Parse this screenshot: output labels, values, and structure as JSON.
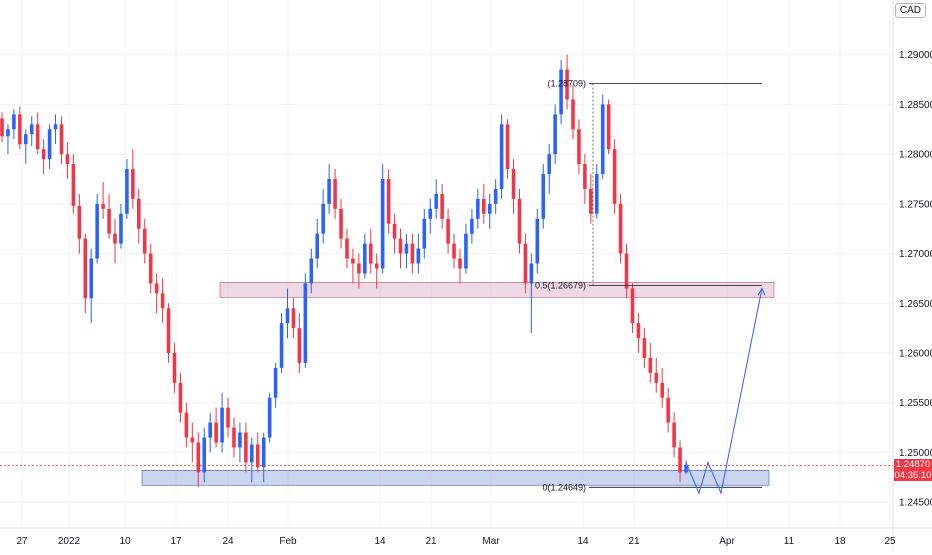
{
  "currency": "CAD",
  "colors": {
    "up": "#2962ff",
    "down": "#f23645",
    "supply_zone": "rgba(214,168,196,0.45)",
    "demand_zone": "rgba(160,178,226,0.55)",
    "forecast": "#2962ff",
    "grid": "#f0f3fa"
  },
  "price_tag": {
    "price": "1.24870",
    "countdown": "04:35:10"
  },
  "fib_levels": [
    {
      "label": "(1.28709)",
      "price": 1.28709
    },
    {
      "label": "0.5(1.26679)",
      "price": 1.26679
    },
    {
      "label": "0(1.24649)",
      "price": 1.24649
    }
  ],
  "zones": [
    {
      "name": "supply",
      "top": 1.2671,
      "bottom": 1.2656
    },
    {
      "name": "demand",
      "top": 1.2482,
      "bottom": 1.2467
    }
  ],
  "chart_data": {
    "type": "candlestick",
    "title": "",
    "y_axis": {
      "ticks": [
        "1.29000",
        "1.28500",
        "1.28000",
        "1.27500",
        "1.27000",
        "1.26500",
        "1.26000",
        "1.25500",
        "1.25000",
        "1.24500"
      ],
      "ylim": [
        1.2424,
        1.2955
      ]
    },
    "x_axis": {
      "ticks": [
        "27",
        "2022",
        "10",
        "17",
        "24",
        "Feb",
        "14",
        "21",
        "Mar",
        "14",
        "21",
        "Apr",
        "11",
        "18",
        "25"
      ]
    },
    "candles_note": "daily-ish OHLC, approximate",
    "ohlc": [
      [
        1.2836,
        1.2842,
        1.2812,
        1.2818
      ],
      [
        1.2818,
        1.283,
        1.28,
        1.2825
      ],
      [
        1.2825,
        1.2845,
        1.2815,
        1.284
      ],
      [
        1.284,
        1.2848,
        1.2805,
        1.281
      ],
      [
        1.281,
        1.2825,
        1.279,
        1.282
      ],
      [
        1.282,
        1.2838,
        1.2808,
        1.283
      ],
      [
        1.283,
        1.2842,
        1.28,
        1.2805
      ],
      [
        1.2805,
        1.2815,
        1.278,
        1.2795
      ],
      [
        1.2795,
        1.283,
        1.2785,
        1.2825
      ],
      [
        1.2825,
        1.284,
        1.281,
        1.283
      ],
      [
        1.283,
        1.2838,
        1.279,
        1.28
      ],
      [
        1.28,
        1.2812,
        1.2775,
        1.279
      ],
      [
        1.279,
        1.28,
        1.274,
        1.2748
      ],
      [
        1.2748,
        1.276,
        1.27,
        1.2715
      ],
      [
        1.2715,
        1.272,
        1.264,
        1.2655
      ],
      [
        1.2655,
        1.2705,
        1.263,
        1.2695
      ],
      [
        1.2695,
        1.276,
        1.269,
        1.275
      ],
      [
        1.275,
        1.2772,
        1.2735,
        1.2745
      ],
      [
        1.2745,
        1.276,
        1.2715,
        1.272
      ],
      [
        1.272,
        1.2735,
        1.269,
        1.271
      ],
      [
        1.271,
        1.275,
        1.2705,
        1.274
      ],
      [
        1.274,
        1.2795,
        1.2735,
        1.2785
      ],
      [
        1.2785,
        1.2805,
        1.2745,
        1.2755
      ],
      [
        1.2755,
        1.2765,
        1.271,
        1.2725
      ],
      [
        1.2725,
        1.2735,
        1.269,
        1.27
      ],
      [
        1.27,
        1.271,
        1.266,
        1.267
      ],
      [
        1.267,
        1.268,
        1.264,
        1.266
      ],
      [
        1.266,
        1.2675,
        1.263,
        1.2645
      ],
      [
        1.2645,
        1.265,
        1.259,
        1.26
      ],
      [
        1.26,
        1.261,
        1.256,
        1.257
      ],
      [
        1.257,
        1.258,
        1.253,
        1.254
      ],
      [
        1.254,
        1.255,
        1.2505,
        1.2515
      ],
      [
        1.2515,
        1.253,
        1.249,
        1.251
      ],
      [
        1.251,
        1.252,
        1.2465,
        1.248
      ],
      [
        1.248,
        1.2525,
        1.247,
        1.2515
      ],
      [
        1.2515,
        1.254,
        1.25,
        1.253
      ],
      [
        1.253,
        1.2545,
        1.2505,
        1.251
      ],
      [
        1.251,
        1.256,
        1.25,
        1.2545
      ],
      [
        1.2545,
        1.2555,
        1.2515,
        1.2525
      ],
      [
        1.2525,
        1.2535,
        1.2495,
        1.2505
      ],
      [
        1.2505,
        1.253,
        1.249,
        1.252
      ],
      [
        1.252,
        1.253,
        1.248,
        1.249
      ],
      [
        1.249,
        1.2515,
        1.247,
        1.2508
      ],
      [
        1.2508,
        1.252,
        1.248,
        1.2485
      ],
      [
        1.2485,
        1.252,
        1.247,
        1.2515
      ],
      [
        1.2515,
        1.256,
        1.251,
        1.2555
      ],
      [
        1.2555,
        1.259,
        1.2545,
        1.2585
      ],
      [
        1.2585,
        1.264,
        1.258,
        1.263
      ],
      [
        1.263,
        1.2665,
        1.2615,
        1.2645
      ],
      [
        1.2645,
        1.2655,
        1.2615,
        1.2625
      ],
      [
        1.2625,
        1.264,
        1.258,
        1.259
      ],
      [
        1.259,
        1.268,
        1.2585,
        1.267
      ],
      [
        1.267,
        1.2705,
        1.266,
        1.2695
      ],
      [
        1.2695,
        1.2735,
        1.2685,
        1.272
      ],
      [
        1.272,
        1.2765,
        1.271,
        1.275
      ],
      [
        1.275,
        1.279,
        1.274,
        1.2775
      ],
      [
        1.2775,
        1.2785,
        1.2735,
        1.2745
      ],
      [
        1.2745,
        1.2755,
        1.2705,
        1.2715
      ],
      [
        1.2715,
        1.2725,
        1.2685,
        1.2695
      ],
      [
        1.2695,
        1.2705,
        1.267,
        1.269
      ],
      [
        1.269,
        1.27,
        1.2665,
        1.268
      ],
      [
        1.268,
        1.272,
        1.2675,
        1.271
      ],
      [
        1.271,
        1.2725,
        1.268,
        1.269
      ],
      [
        1.269,
        1.27,
        1.2665,
        1.2685
      ],
      [
        1.2685,
        1.279,
        1.268,
        1.2775
      ],
      [
        1.2775,
        1.2785,
        1.272,
        1.273
      ],
      [
        1.273,
        1.274,
        1.27,
        1.2715
      ],
      [
        1.2715,
        1.2725,
        1.2685,
        1.27
      ],
      [
        1.27,
        1.272,
        1.2685,
        1.271
      ],
      [
        1.271,
        1.272,
        1.268,
        1.269
      ],
      [
        1.269,
        1.272,
        1.268,
        1.2705
      ],
      [
        1.2705,
        1.2745,
        1.2695,
        1.2735
      ],
      [
        1.2735,
        1.2755,
        1.272,
        1.2745
      ],
      [
        1.2745,
        1.2775,
        1.2735,
        1.276
      ],
      [
        1.276,
        1.277,
        1.2725,
        1.2735
      ],
      [
        1.2735,
        1.2745,
        1.27,
        1.271
      ],
      [
        1.271,
        1.272,
        1.2685,
        1.2695
      ],
      [
        1.2695,
        1.2705,
        1.267,
        1.2685
      ],
      [
        1.2685,
        1.273,
        1.268,
        1.272
      ],
      [
        1.272,
        1.2745,
        1.271,
        1.2735
      ],
      [
        1.2735,
        1.2765,
        1.2725,
        1.2755
      ],
      [
        1.2755,
        1.277,
        1.273,
        1.274
      ],
      [
        1.274,
        1.276,
        1.2725,
        1.275
      ],
      [
        1.275,
        1.2775,
        1.274,
        1.2765
      ],
      [
        1.2765,
        1.284,
        1.2755,
        1.283
      ],
      [
        1.283,
        1.2835,
        1.2775,
        1.2785
      ],
      [
        1.2785,
        1.2795,
        1.274,
        1.2755
      ],
      [
        1.2755,
        1.2765,
        1.27,
        1.271
      ],
      [
        1.271,
        1.272,
        1.266,
        1.267
      ],
      [
        1.267,
        1.27,
        1.262,
        1.269
      ],
      [
        1.269,
        1.2745,
        1.268,
        1.2735
      ],
      [
        1.2735,
        1.279,
        1.2725,
        1.278
      ],
      [
        1.278,
        1.281,
        1.276,
        1.28
      ],
      [
        1.28,
        1.285,
        1.279,
        1.284
      ],
      [
        1.284,
        1.2895,
        1.283,
        1.2885
      ],
      [
        1.2885,
        1.29,
        1.2845,
        1.2855
      ],
      [
        1.2855,
        1.287,
        1.2815,
        1.2825
      ],
      [
        1.2825,
        1.2835,
        1.278,
        1.279
      ],
      [
        1.279,
        1.28,
        1.275,
        1.2765
      ],
      [
        1.2765,
        1.278,
        1.273,
        1.274
      ],
      [
        1.274,
        1.279,
        1.2735,
        1.278
      ],
      [
        1.278,
        1.286,
        1.2775,
        1.285
      ],
      [
        1.285,
        1.2855,
        1.28,
        1.2805
      ],
      [
        1.2805,
        1.2815,
        1.274,
        1.275
      ],
      [
        1.275,
        1.276,
        1.269,
        1.27
      ],
      [
        1.27,
        1.271,
        1.2655,
        1.2665
      ],
      [
        1.2665,
        1.267,
        1.262,
        1.263
      ],
      [
        1.263,
        1.264,
        1.26,
        1.2615
      ],
      [
        1.2615,
        1.2625,
        1.2585,
        1.2595
      ],
      [
        1.2595,
        1.261,
        1.257,
        1.258
      ],
      [
        1.258,
        1.2595,
        1.256,
        1.257
      ],
      [
        1.257,
        1.2585,
        1.2545,
        1.2555
      ],
      [
        1.2555,
        1.2565,
        1.252,
        1.253
      ],
      [
        1.253,
        1.254,
        1.2495,
        1.2505
      ],
      [
        1.2505,
        1.2512,
        1.247,
        1.248
      ],
      [
        1.248,
        1.2492,
        1.2478,
        1.2487
      ]
    ],
    "forecast_path": [
      {
        "date": "t0",
        "price": 1.249
      },
      {
        "date": "t1",
        "price": 1.2459
      },
      {
        "date": "t2",
        "price": 1.249
      },
      {
        "date": "t3",
        "price": 1.2459
      },
      {
        "date": "t4",
        "price": 1.2665
      }
    ]
  }
}
